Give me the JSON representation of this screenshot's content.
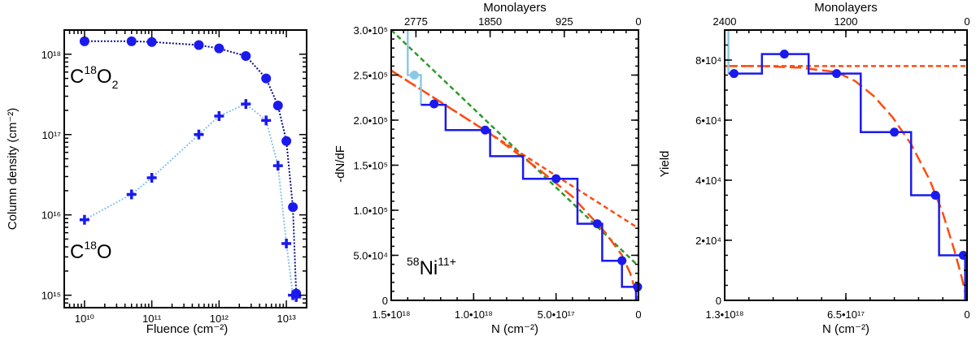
{
  "chart_data": [
    {
      "type": "scatter",
      "panel": "left",
      "xlabel": "Fluence (cm⁻²)",
      "ylabel": "Column density (cm⁻²)",
      "xscale": "log",
      "yscale": "log",
      "xlim": [
        5000000000.0,
        20000000000000.0
      ],
      "ylim": [
        700000000000000.0,
        2e+18
      ],
      "x_ticks": [
        "10¹⁰",
        "10¹¹",
        "10¹²",
        "10¹³"
      ],
      "y_ticks": [
        "10¹⁵",
        "10¹⁶",
        "10¹⁷",
        "10¹⁸"
      ],
      "annotations": [
        {
          "base": "C",
          "sup": "18",
          "main": "O",
          "sub": "2"
        },
        {
          "base": "C",
          "sup": "18",
          "main": "O",
          "sub": ""
        }
      ],
      "series": [
        {
          "name": "C18O2",
          "marker": "circle",
          "color": "#1a1aee",
          "line_color": "#0a0a8a",
          "x": [
            10000000000.0,
            50000000000.0,
            100000000000.0,
            500000000000.0,
            1000000000000.0,
            2500000000000.0,
            5000000000000.0,
            7500000000000.0,
            10000000000000.0,
            12500000000000.0,
            14000000000000.0
          ],
          "y": [
            1.45e+18,
            1.45e+18,
            1.42e+18,
            1.3e+18,
            1.18e+18,
            9.5e+17,
            5e+17,
            2.3e+17,
            8.3e+16,
            1.25e+16,
            1050000000000000.0
          ]
        },
        {
          "name": "C18O",
          "marker": "plus",
          "color": "#1a1aee",
          "line_color": "#87c4e8",
          "x": [
            10000000000.0,
            50000000000.0,
            100000000000.0,
            500000000000.0,
            1000000000000.0,
            2500000000000.0,
            5000000000000.0,
            7500000000000.0,
            10000000000000.0,
            12500000000000.0,
            14000000000000.0
          ],
          "y": [
            8700000000000000.0,
            1.8e+16,
            2.9e+16,
            1e+17,
            1.7e+17,
            2.4e+17,
            1.5e+17,
            4.1e+16,
            4400000000000000.0,
            1000000000000000.0,
            950000000000000.0
          ]
        }
      ]
    },
    {
      "type": "line",
      "panel": "middle",
      "xlabel": "N (cm⁻²)",
      "ylabel": "-dN/dF",
      "top_xlabel": "Monolayers",
      "xlim": [
        1.5e+18,
        0
      ],
      "ylim": [
        0,
        300000.0
      ],
      "x_ticks": [
        "1.5•10¹⁸",
        "1.0•10¹⁸",
        "5.0•10¹⁷",
        "0"
      ],
      "top_ticks": [
        "2775",
        "1850",
        "925",
        "0"
      ],
      "y_ticks": [
        "0",
        "5.0•10⁴",
        "1.0•10⁵",
        "1.5•10⁵",
        "2.0•10⁵",
        "2.5•10⁵",
        "3.0•10⁵"
      ],
      "annotation": {
        "mass": "58",
        "element": "Ni",
        "charge": "11+"
      },
      "steps_light": [
        [
          1.4e+18,
          300000.0
        ],
        [
          1.4e+18,
          250000.0
        ],
        [
          1.32e+18,
          250000.0
        ],
        [
          1.32e+18,
          217000.0
        ]
      ],
      "steps_blue": [
        [
          1.32e+18,
          217000.0
        ],
        [
          1.17e+18,
          217000.0
        ],
        [
          1.17e+18,
          189000.0
        ],
        [
          9e+17,
          189000.0
        ],
        [
          9e+17,
          160000.0
        ],
        [
          7e+17,
          160000.0
        ],
        [
          7e+17,
          135000.0
        ],
        [
          3.7e+17,
          135000.0
        ],
        [
          3.7e+17,
          85000.0
        ],
        [
          2.2e+17,
          85000.0
        ],
        [
          2.2e+17,
          44000.0
        ],
        [
          1e+17,
          44000.0
        ],
        [
          1e+17,
          15000.0
        ],
        [
          1.5e+16,
          15000.0
        ],
        [
          1.5e+16,
          0
        ]
      ],
      "points_light": {
        "x": [
          1.36e+18
        ],
        "y": [
          250000.0
        ]
      },
      "points": {
        "x": [
          1.24e+18,
          9.3e+17,
          5e+17,
          2.5e+17,
          1e+17,
          5000000000000000.0
        ],
        "y": [
          218000.0,
          189000.0,
          135000.0,
          85000.0,
          44000.0,
          15000.0
        ]
      },
      "fits": [
        {
          "name": "green dashed",
          "color": "#2c9a2c",
          "x": [
            1.5e+18,
            0
          ],
          "y": [
            300000.0,
            38000.0
          ]
        },
        {
          "name": "orange dashed short",
          "color": "#ff4c10",
          "x": [
            1.5e+18,
            0
          ],
          "y": [
            255000.0,
            80000.0
          ]
        },
        {
          "name": "orange dashed long",
          "color": "#ff4c10",
          "x": [
            1.5e+18,
            1.2e+18,
            9e+17,
            6e+17,
            4e+17,
            2e+17,
            1e+17,
            5e+16,
            0
          ],
          "y": [
            255000.0,
            220000.0,
            185000.0,
            145000.0,
            115000.0,
            75000.0,
            50000.0,
            30000.0,
            0
          ]
        }
      ]
    },
    {
      "type": "line",
      "panel": "right",
      "xlabel": "N (cm⁻²)",
      "ylabel": "Yield",
      "top_xlabel": "Monolayers",
      "xlim": [
        1.3e+18,
        0
      ],
      "ylim": [
        0,
        90000.0
      ],
      "x_ticks": [
        "1.3•10¹⁸",
        "6.5•10¹⁷",
        "0"
      ],
      "top_ticks": [
        "2400",
        "1200",
        "0"
      ],
      "y_ticks": [
        "0",
        "2•10⁴",
        "4•10⁴",
        "6•10⁴",
        "8•10⁴"
      ],
      "steps_light": [
        [
          1.28e+18,
          90000.0
        ],
        [
          1.28e+18,
          75500.0
        ]
      ],
      "steps_blue": [
        [
          1.28e+18,
          75500.0
        ],
        [
          1.1e+18,
          75500.0
        ],
        [
          1.1e+18,
          82000.0
        ],
        [
          8.5e+17,
          82000.0
        ],
        [
          8.5e+17,
          75500.0
        ],
        [
          5.7e+17,
          75500.0
        ],
        [
          5.7e+17,
          56000.0
        ],
        [
          3e+17,
          56000.0
        ],
        [
          3e+17,
          35000.0
        ],
        [
          1.5e+17,
          35000.0
        ],
        [
          1.5e+17,
          15000.0
        ],
        [
          1e+16,
          15000.0
        ],
        [
          1e+16,
          0
        ]
      ],
      "points": {
        "x": [
          1.25e+18,
          9.8e+17,
          7e+17,
          3.9e+17,
          1.7e+17,
          2e+16
        ],
        "y": [
          75500.0,
          82000.0,
          75500.0,
          56000.0,
          35000.0,
          15000.0
        ]
      },
      "fits": [
        {
          "name": "orange dashed short",
          "color": "#ff4c10",
          "x": [
            1.3e+18,
            0
          ],
          "y": [
            78000.0,
            78000.0
          ]
        },
        {
          "name": "orange dashed long",
          "color": "#ff4c10",
          "x": [
            1.3e+18,
            1.1e+18,
            9e+17,
            7e+17,
            6e+17,
            5e+17,
            4e+17,
            3e+17,
            2e+17,
            1.3e+17,
            7e+16,
            3e+16,
            0
          ],
          "y": [
            78000.0,
            78000.0,
            77500.0,
            76000.0,
            73000.0,
            68000.0,
            61000.0,
            52000.0,
            40000.0,
            29000.0,
            17000.0,
            8000.0,
            0
          ]
        }
      ]
    }
  ]
}
